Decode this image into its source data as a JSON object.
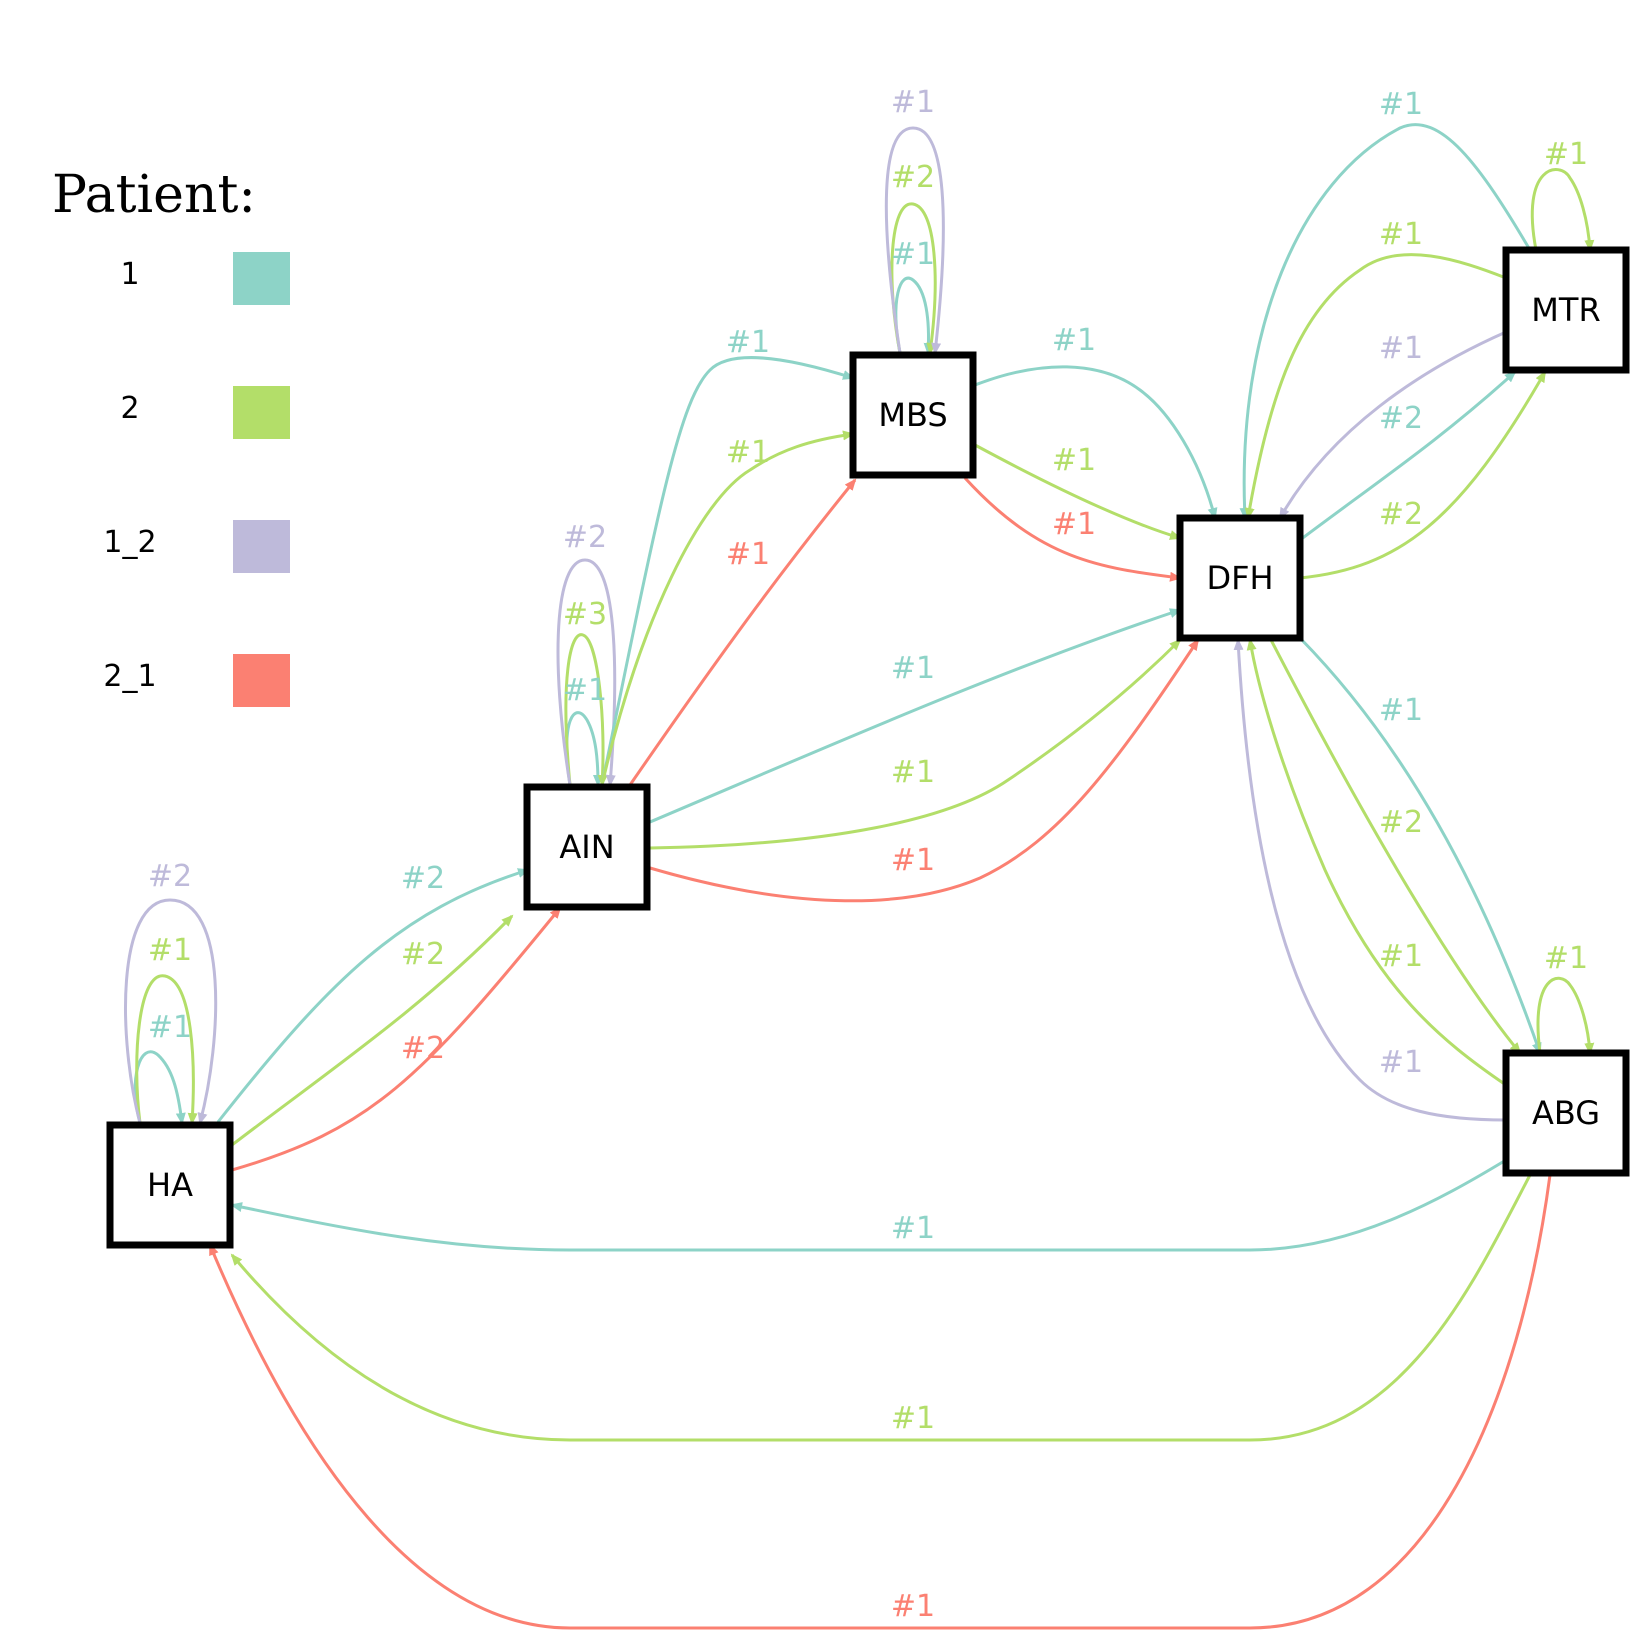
{
  "legend": {
    "title": "Patient:",
    "items": [
      {
        "label": "1",
        "color": "#8dd3c7"
      },
      {
        "label": "2",
        "color": "#b3de69"
      },
      {
        "label": "1_2",
        "color": "#bebada"
      },
      {
        "label": "2_1",
        "color": "#fb8072"
      }
    ]
  },
  "nodes": [
    "HA",
    "AIN",
    "MBS",
    "DFH",
    "MTR",
    "ABG"
  ],
  "edges": [
    {
      "from": "HA",
      "to": "HA",
      "patient": "1",
      "label": "#1"
    },
    {
      "from": "HA",
      "to": "HA",
      "patient": "2",
      "label": "#1"
    },
    {
      "from": "HA",
      "to": "HA",
      "patient": "1_2",
      "label": "#2"
    },
    {
      "from": "HA",
      "to": "AIN",
      "patient": "1",
      "label": "#2"
    },
    {
      "from": "HA",
      "to": "AIN",
      "patient": "2",
      "label": "#2"
    },
    {
      "from": "HA",
      "to": "AIN",
      "patient": "2_1",
      "label": "#2"
    },
    {
      "from": "AIN",
      "to": "AIN",
      "patient": "1",
      "label": "#1"
    },
    {
      "from": "AIN",
      "to": "AIN",
      "patient": "2",
      "label": "#3"
    },
    {
      "from": "AIN",
      "to": "AIN",
      "patient": "1_2",
      "label": "#2"
    },
    {
      "from": "AIN",
      "to": "MBS",
      "patient": "1",
      "label": "#1"
    },
    {
      "from": "AIN",
      "to": "MBS",
      "patient": "2",
      "label": "#1"
    },
    {
      "from": "AIN",
      "to": "MBS",
      "patient": "2_1",
      "label": "#1"
    },
    {
      "from": "AIN",
      "to": "DFH",
      "patient": "1",
      "label": "#1"
    },
    {
      "from": "AIN",
      "to": "DFH",
      "patient": "2",
      "label": "#1"
    },
    {
      "from": "AIN",
      "to": "DFH",
      "patient": "2_1",
      "label": "#1"
    },
    {
      "from": "MBS",
      "to": "MBS",
      "patient": "1",
      "label": "#1"
    },
    {
      "from": "MBS",
      "to": "MBS",
      "patient": "2",
      "label": "#2"
    },
    {
      "from": "MBS",
      "to": "MBS",
      "patient": "1_2",
      "label": "#1"
    },
    {
      "from": "MBS",
      "to": "DFH",
      "patient": "1",
      "label": "#1"
    },
    {
      "from": "MBS",
      "to": "DFH",
      "patient": "2",
      "label": "#1"
    },
    {
      "from": "MBS",
      "to": "DFH",
      "patient": "2_1",
      "label": "#1"
    },
    {
      "from": "MTR",
      "to": "DFH",
      "patient": "1",
      "label": "#1"
    },
    {
      "from": "MTR",
      "to": "MTR",
      "patient": "2",
      "label": "#1"
    },
    {
      "from": "MTR",
      "to": "DFH",
      "patient": "2",
      "label": "#1"
    },
    {
      "from": "MTR",
      "to": "DFH",
      "patient": "1_2",
      "label": "#1"
    },
    {
      "from": "DFH",
      "to": "MTR",
      "patient": "1",
      "label": "#2"
    },
    {
      "from": "DFH",
      "to": "MTR",
      "patient": "2",
      "label": "#2"
    },
    {
      "from": "DFH",
      "to": "ABG",
      "patient": "1",
      "label": "#1"
    },
    {
      "from": "DFH",
      "to": "ABG",
      "patient": "2",
      "label": "#2"
    },
    {
      "from": "ABG",
      "to": "ABG",
      "patient": "2",
      "label": "#1"
    },
    {
      "from": "ABG",
      "to": "DFH",
      "patient": "2",
      "label": "#1"
    },
    {
      "from": "ABG",
      "to": "DFH",
      "patient": "1_2",
      "label": "#1"
    },
    {
      "from": "ABG",
      "to": "HA",
      "patient": "1",
      "label": "#1"
    },
    {
      "from": "ABG",
      "to": "HA",
      "patient": "2",
      "label": "#1"
    },
    {
      "from": "ABG",
      "to": "HA",
      "patient": "2_1",
      "label": "#1"
    }
  ]
}
